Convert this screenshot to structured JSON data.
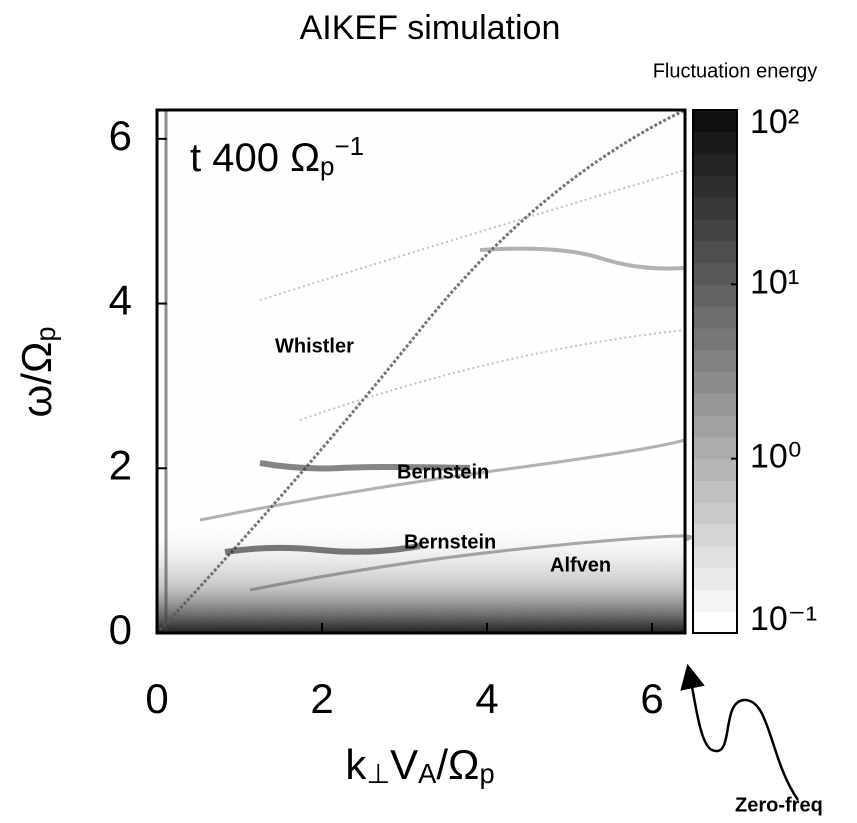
{
  "chart_data": {
    "type": "heatmap",
    "title": "AIKEF simulation",
    "xlabel": [
      "k",
      "⊥",
      "V",
      "A",
      "/Ω",
      "p"
    ],
    "ylabel": [
      "ω/Ω",
      "p"
    ],
    "xlim": [
      0,
      6.4
    ],
    "ylim": [
      0,
      6.35
    ],
    "xticks": [
      0,
      2,
      4,
      6
    ],
    "yticks": [
      0,
      2,
      4,
      6
    ],
    "annotation": [
      "t  400  Ω",
      "p",
      "−1"
    ],
    "branch_labels": [
      "Whistler",
      "Bernstein",
      "Bernstein",
      "Alfven"
    ],
    "arrow_label": "Zero-freq",
    "colorbar": {
      "label": "Fluctuation energy",
      "scale": "log",
      "lim": [
        0.1,
        100
      ],
      "ticks": [
        {
          "value": 0.1,
          "label": "10⁻¹"
        },
        {
          "value": 1,
          "label": "10⁰"
        },
        {
          "value": 10,
          "label": "10¹"
        },
        {
          "value": 100,
          "label": "10²"
        }
      ]
    }
  }
}
